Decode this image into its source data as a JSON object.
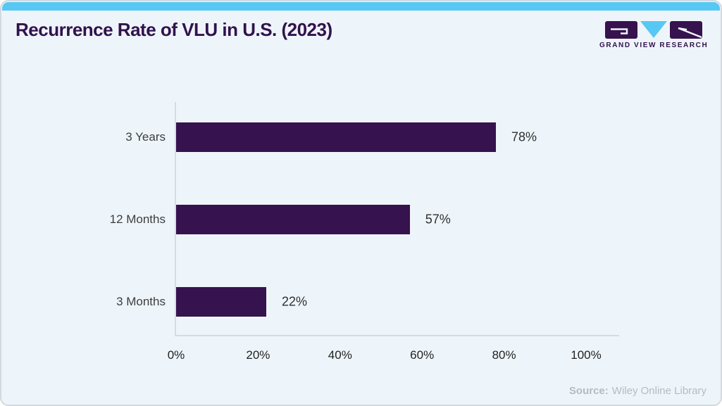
{
  "header": {
    "title": "Recurrence Rate of VLU in U.S. (2023)",
    "logo_text": "GRAND VIEW RESEARCH"
  },
  "chart_data": {
    "type": "bar",
    "orientation": "horizontal",
    "title": "Recurrence Rate of VLU in U.S. (2023)",
    "categories": [
      "3 Years",
      "12 Months",
      "3 Months"
    ],
    "values": [
      78,
      57,
      22
    ],
    "value_labels": [
      "78%",
      "57%",
      "22%"
    ],
    "x_ticks": [
      "0%",
      "20%",
      "40%",
      "60%",
      "80%",
      "100%"
    ],
    "xlim": [
      0,
      100
    ],
    "xlabel": "",
    "ylabel": "",
    "grid": false,
    "legend": false,
    "bar_color": "#36124e"
  },
  "footer": {
    "source_label": "Source:",
    "source_value": "Wiley Online Library"
  },
  "colors": {
    "accent_bar": "#57c8f3",
    "bar": "#36124e",
    "card_background": "#eef5fa",
    "axis": "#d7dbdf",
    "title_text": "#31124d",
    "label_text": "#3d3d3d",
    "source_text": "#b4bbc3"
  }
}
